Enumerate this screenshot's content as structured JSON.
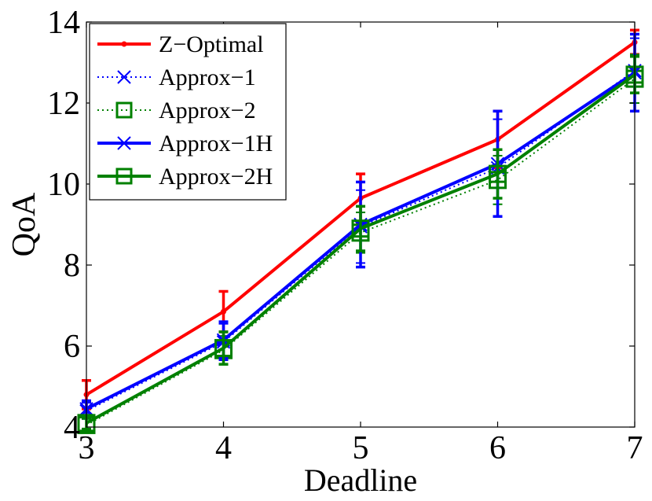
{
  "chart_data": {
    "type": "line",
    "xlabel": "Deadline",
    "ylabel": "QoA",
    "x": [
      3,
      4,
      5,
      6,
      7
    ],
    "xlim": [
      3,
      7
    ],
    "ylim": [
      4,
      14
    ],
    "xticks": [
      "3",
      "4",
      "5",
      "6",
      "7"
    ],
    "yticks": [
      "4",
      "6",
      "8",
      "10",
      "12",
      "14"
    ],
    "grid": false,
    "legend_position": "top-left",
    "series": [
      {
        "name": "Z−Optimal",
        "color": "#ff0000",
        "line_style": "solid",
        "marker": "point",
        "values": [
          4.8,
          6.85,
          9.65,
          11.1,
          13.5
        ],
        "error": [
          0.35,
          0.5,
          0.6,
          0.7,
          0.3
        ]
      },
      {
        "name": "Approx−1",
        "color": "#0000ff",
        "line_style": "dotted",
        "marker": "x",
        "values": [
          4.4,
          6.1,
          8.95,
          10.4,
          12.8
        ],
        "error": [
          0.2,
          0.45,
          0.9,
          1.2,
          0.8
        ]
      },
      {
        "name": "Approx−2",
        "color": "#008000",
        "line_style": "dotted",
        "marker": "square",
        "values": [
          4.05,
          5.9,
          8.8,
          10.1,
          12.6
        ],
        "error": [
          0.15,
          0.35,
          0.5,
          0.6,
          0.6
        ]
      },
      {
        "name": "Approx−1H",
        "color": "#0000ff",
        "line_style": "solid",
        "marker": "x",
        "values": [
          4.45,
          6.15,
          9.0,
          10.5,
          12.75
        ],
        "error": [
          0.2,
          0.45,
          1.05,
          1.3,
          0.95
        ]
      },
      {
        "name": "Approx−2H",
        "color": "#008000",
        "line_style": "solid",
        "marker": "square",
        "values": [
          4.1,
          5.95,
          8.9,
          10.25,
          12.7
        ],
        "error": [
          0.15,
          0.4,
          0.55,
          0.6,
          0.45
        ]
      }
    ]
  }
}
